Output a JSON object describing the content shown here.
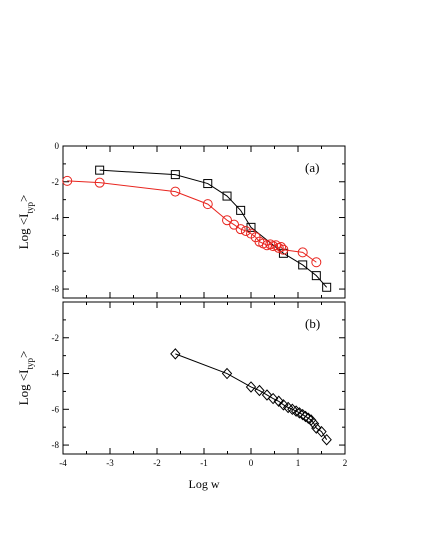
{
  "chart_data": [
    {
      "type": "line",
      "panel_label": "(a)",
      "ylabel": "Log <I_typ>",
      "xlim": [
        -4,
        2
      ],
      "ylim": [
        -8.5,
        0
      ],
      "yticks": [
        0,
        -2,
        -4,
        -6,
        -8
      ],
      "xticks": [
        -4,
        -3,
        -2,
        -1,
        0,
        1,
        2
      ],
      "grid": false,
      "series": [
        {
          "marker": "square",
          "color": "#000000",
          "x": [
            -3.22,
            -1.61,
            -0.92,
            -0.51,
            -0.22,
            0.0,
            0.69,
            1.1,
            1.39,
            1.61
          ],
          "y": [
            -1.35,
            -1.6,
            -2.1,
            -2.8,
            -3.6,
            -4.55,
            -6.0,
            -6.65,
            -7.25,
            -7.9
          ]
        },
        {
          "marker": "circle",
          "color": "#e8251f",
          "x": [
            -3.91,
            -3.22,
            -1.61,
            -0.92,
            -0.51,
            -0.36,
            -0.22,
            -0.11,
            0.0,
            0.1,
            0.18,
            0.26,
            0.34,
            0.41,
            0.47,
            0.53,
            0.59,
            0.64,
            0.69,
            1.1,
            1.39
          ],
          "y": [
            -1.95,
            -2.05,
            -2.55,
            -3.25,
            -4.15,
            -4.4,
            -4.65,
            -4.75,
            -4.9,
            -5.1,
            -5.35,
            -5.45,
            -5.55,
            -5.5,
            -5.6,
            -5.55,
            -5.7,
            -5.65,
            -5.8,
            -5.95,
            -6.5
          ]
        }
      ]
    },
    {
      "type": "line",
      "panel_label": "(b)",
      "ylabel": "Log <I_typ>",
      "xlabel": "Log w",
      "xlim": [
        -4,
        2
      ],
      "ylim": [
        -8.5,
        0
      ],
      "yticks": [
        -2,
        -4,
        -6,
        -8
      ],
      "xticks": [
        -4,
        -3,
        -2,
        -1,
        0,
        1,
        2
      ],
      "xticklabels": [
        "-4",
        "-3",
        "-2",
        "-1",
        "0",
        "1",
        "2"
      ],
      "grid": false,
      "series": [
        {
          "marker": "diamond",
          "color": "#000000",
          "x": [
            -1.61,
            -0.51,
            0.0,
            0.18,
            0.34,
            0.47,
            0.59,
            0.69,
            0.79,
            0.88,
            0.96,
            1.03,
            1.1,
            1.16,
            1.22,
            1.28,
            1.34,
            1.39,
            1.5,
            1.61
          ],
          "y": [
            -2.9,
            -4.0,
            -4.75,
            -4.95,
            -5.2,
            -5.4,
            -5.55,
            -5.75,
            -5.9,
            -6.0,
            -6.1,
            -6.2,
            -6.3,
            -6.4,
            -6.5,
            -6.6,
            -6.8,
            -7.05,
            -7.25,
            -7.7
          ]
        }
      ]
    }
  ]
}
